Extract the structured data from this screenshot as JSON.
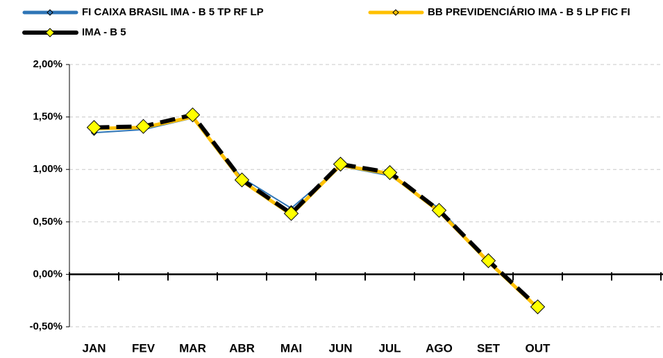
{
  "chart_data": {
    "type": "line",
    "categories": [
      "JAN",
      "FEV",
      "MAR",
      "ABR",
      "MAI",
      "JUN",
      "JUL",
      "AGO",
      "SET",
      "OUT",
      null,
      null
    ],
    "series": [
      {
        "name": "FI CAIXA BRASIL IMA - B 5 TP RF LP",
        "color": "#2e75b6",
        "values": [
          1.35,
          1.38,
          1.49,
          0.92,
          0.63,
          1.03,
          0.94,
          0.63,
          0.12,
          -0.32,
          null,
          null
        ]
      },
      {
        "name": "BB PREVIDENCIÁRIO IMA - B 5 LP FIC FI",
        "color": "#ffc000",
        "values": [
          1.39,
          1.4,
          1.5,
          0.89,
          0.57,
          1.04,
          0.96,
          0.6,
          0.12,
          -0.32,
          null,
          null
        ]
      },
      {
        "name": "IMA - B 5",
        "color": "#000000",
        "marker_color": "#ffff00",
        "values": [
          1.4,
          1.41,
          1.52,
          0.9,
          0.58,
          1.05,
          0.97,
          0.61,
          0.13,
          -0.31,
          null,
          null
        ]
      }
    ],
    "ylim": [
      -0.5,
      2.0
    ],
    "yticks": [
      {
        "value": -0.5,
        "label": "-0,50%"
      },
      {
        "value": 0,
        "label": "0,00%"
      },
      {
        "value": 0.5,
        "label": "0,50%"
      },
      {
        "value": 1.0,
        "label": "1,00%"
      },
      {
        "value": 1.5,
        "label": "1,50%"
      },
      {
        "value": 2.0,
        "label": "2,00%"
      }
    ],
    "grid": true
  }
}
